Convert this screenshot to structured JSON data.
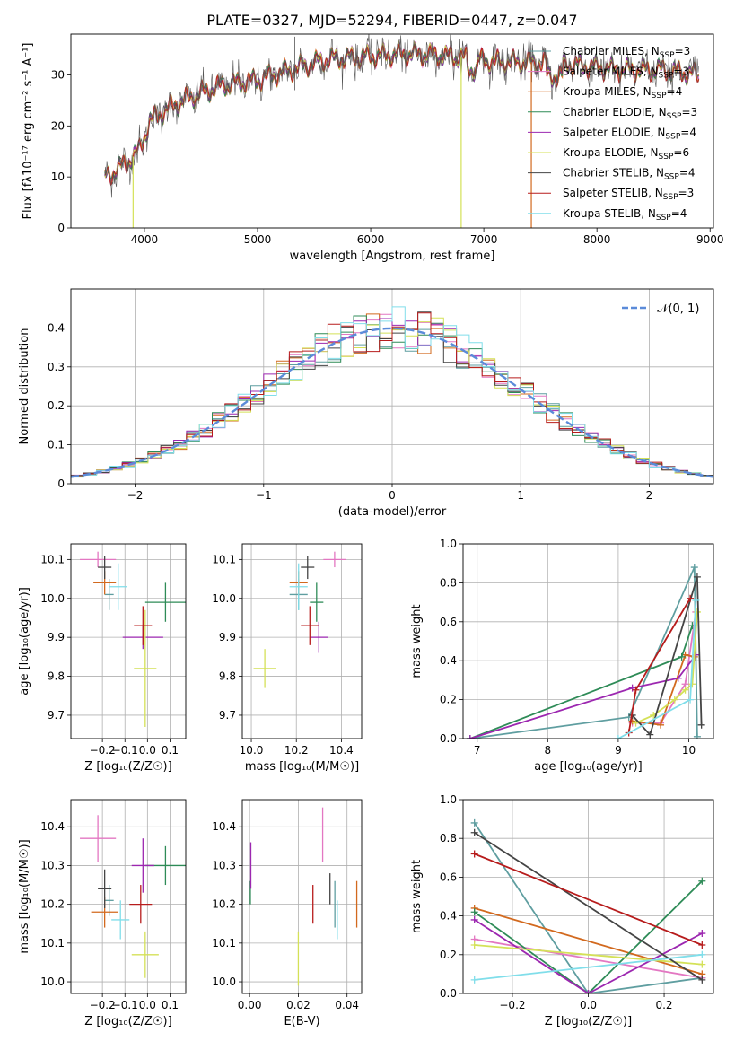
{
  "figure_title": "PLATE=0327, MJD=52294, FIBERID=0447, z=0.047",
  "models": [
    {
      "name": "Chabrier MILES",
      "nssp": "3",
      "color": "#5f9ea0"
    },
    {
      "name": "Salpeter MILES",
      "nssp": "3",
      "color": "#e377c2"
    },
    {
      "name": "Kroupa MILES",
      "nssp": "4",
      "color": "#d2691e"
    },
    {
      "name": "Chabrier ELODIE",
      "nssp": "3",
      "color": "#2e8b57"
    },
    {
      "name": "Salpeter ELODIE",
      "nssp": "4",
      "color": "#9c27b0"
    },
    {
      "name": "Kroupa ELODIE",
      "nssp": "6",
      "color": "#d4e157"
    },
    {
      "name": "Chabrier STELIB",
      "nssp": "4",
      "color": "#444444"
    },
    {
      "name": "Salpeter STELIB",
      "nssp": "3",
      "color": "#b71c1c"
    },
    {
      "name": "Kroupa STELIB",
      "nssp": "4",
      "color": "#80deea"
    }
  ],
  "chart_data": [
    {
      "id": "spectrum",
      "type": "line",
      "xlabel": "wavelength [Angstrom, rest frame]",
      "ylabel": "Flux [fλ10⁻¹⁷ erg cm⁻² s⁻¹ A⁻¹]",
      "xlim": [
        3350,
        9030
      ],
      "ylim": [
        0,
        38
      ],
      "xticks": [
        4000,
        5000,
        6000,
        7000,
        8000,
        9000
      ],
      "yticks": [
        0,
        10,
        20,
        30
      ],
      "continuum": [
        [
          3650,
          10
        ],
        [
          3800,
          12
        ],
        [
          3950,
          15
        ],
        [
          4050,
          21
        ],
        [
          4250,
          24
        ],
        [
          4450,
          26
        ],
        [
          4700,
          28
        ],
        [
          5000,
          29
        ],
        [
          5300,
          31
        ],
        [
          5600,
          33
        ],
        [
          5900,
          33.5
        ],
        [
          6200,
          34
        ],
        [
          6500,
          34
        ],
        [
          6800,
          33.5
        ],
        [
          7100,
          32.5
        ],
        [
          7500,
          32.5
        ],
        [
          7800,
          32
        ],
        [
          8200,
          31
        ],
        [
          8600,
          31
        ],
        [
          8900,
          30
        ]
      ],
      "dropouts": [
        {
          "model": "Kroupa ELODIE",
          "x": 3900
        },
        {
          "model": "Kroupa ELODIE",
          "x": 6800
        },
        {
          "model": "Kroupa MILES",
          "x": 7420
        }
      ],
      "grid": false,
      "legend": "top-right"
    },
    {
      "id": "residual-histogram",
      "type": "line",
      "xlabel": "(data-model)/error",
      "ylabel": "Normed distribution",
      "xlim": [
        -2.5,
        2.5
      ],
      "ylim": [
        0,
        0.5
      ],
      "xticks": [
        -2,
        -1,
        0,
        1,
        2
      ],
      "yticks": [
        0.0,
        0.1,
        0.2,
        0.3,
        0.4
      ],
      "reference_curve": {
        "label": "𝒩(0, 1)",
        "mean": 0,
        "sigma": 1,
        "color": "#5b8bd9"
      },
      "bin_width": 0.1,
      "grid": true,
      "legend": "top-right"
    },
    {
      "id": "age-vs-Z",
      "type": "scatter",
      "xlabel": "Z [log₁₀(Z/Z☉)]",
      "ylabel": "age  [log₁₀(age/yr)]",
      "xlim": [
        -0.34,
        0.17
      ],
      "ylim": [
        9.64,
        10.14
      ],
      "xticks": [
        -0.2,
        -0.1,
        0.0,
        0.1
      ],
      "xticklabels": [
        "−0.2",
        "−0.1",
        "0.0",
        "0.1"
      ],
      "yticks": [
        9.7,
        9.8,
        9.9,
        10.0,
        10.1
      ],
      "yticklabels": [
        "9.7",
        "9.8",
        "9.9",
        "10.0",
        "10.1"
      ],
      "points": [
        {
          "model": "Chabrier MILES",
          "x": -0.17,
          "xerr": 0.02,
          "y": 10.01,
          "yerr": 0.04
        },
        {
          "model": "Salpeter MILES",
          "x": -0.22,
          "xerr": 0.08,
          "y": 10.1,
          "yerr": 0.02
        },
        {
          "model": "Kroupa MILES",
          "x": -0.19,
          "xerr": 0.05,
          "y": 10.04,
          "yerr": 0.03
        },
        {
          "model": "Chabrier ELODIE",
          "x": 0.08,
          "xerr": 0.09,
          "y": 9.99,
          "yerr": 0.05
        },
        {
          "model": "Salpeter ELODIE",
          "x": -0.02,
          "xerr": 0.09,
          "y": 9.9,
          "yerr": 0.03
        },
        {
          "model": "Kroupa ELODIE",
          "x": -0.01,
          "xerr": 0.05,
          "y": 9.82,
          "yerr": 0.15
        },
        {
          "model": "Chabrier STELIB",
          "x": -0.19,
          "xerr": 0.03,
          "y": 10.08,
          "yerr": 0.03
        },
        {
          "model": "Salpeter STELIB",
          "x": -0.02,
          "xerr": 0.04,
          "y": 9.93,
          "yerr": 0.05
        },
        {
          "model": "Kroupa STELIB",
          "x": -0.13,
          "xerr": 0.04,
          "y": 10.03,
          "yerr": 0.06
        }
      ],
      "grid": true
    },
    {
      "id": "age-vs-mass",
      "type": "scatter",
      "xlabel": "mass [log₁₀(M/M☉)]",
      "ylabel": "",
      "xlim": [
        9.96,
        10.49
      ],
      "ylim": [
        9.64,
        10.14
      ],
      "xticks": [
        10.0,
        10.2,
        10.4
      ],
      "xticklabels": [
        "10.0",
        "10.2",
        "10.4"
      ],
      "yticks": [
        9.7,
        9.8,
        9.9,
        10.0,
        10.1
      ],
      "yticklabels": [
        "9.7",
        "9.8",
        "9.9",
        "10.0",
        "10.1"
      ],
      "points": [
        {
          "model": "Chabrier MILES",
          "x": 10.21,
          "xerr": 0.04,
          "y": 10.01,
          "yerr": 0.04
        },
        {
          "model": "Salpeter MILES",
          "x": 10.37,
          "xerr": 0.05,
          "y": 10.1,
          "yerr": 0.02
        },
        {
          "model": "Kroupa MILES",
          "x": 10.21,
          "xerr": 0.04,
          "y": 10.04,
          "yerr": 0.03
        },
        {
          "model": "Chabrier ELODIE",
          "x": 10.29,
          "xerr": 0.03,
          "y": 9.99,
          "yerr": 0.05
        },
        {
          "model": "Salpeter ELODIE",
          "x": 10.3,
          "xerr": 0.04,
          "y": 9.9,
          "yerr": 0.04
        },
        {
          "model": "Kroupa ELODIE",
          "x": 10.06,
          "xerr": 0.05,
          "y": 9.82,
          "yerr": 0.05
        },
        {
          "model": "Chabrier STELIB",
          "x": 10.25,
          "xerr": 0.03,
          "y": 10.08,
          "yerr": 0.03
        },
        {
          "model": "Salpeter STELIB",
          "x": 10.26,
          "xerr": 0.04,
          "y": 9.93,
          "yerr": 0.05
        },
        {
          "model": "Kroupa STELIB",
          "x": 10.21,
          "xerr": 0.04,
          "y": 10.03,
          "yerr": 0.06
        }
      ],
      "grid": true
    },
    {
      "id": "weight-vs-age",
      "type": "line",
      "xlabel": "age  [log₁₀(age/yr)]",
      "ylabel": "mass weight",
      "xlim": [
        6.8,
        10.35
      ],
      "ylim": [
        0,
        1.0
      ],
      "xticks": [
        7,
        8,
        9,
        10
      ],
      "xticklabels": [
        "7",
        "8",
        "9",
        "10"
      ],
      "yticks": [
        0.0,
        0.2,
        0.4,
        0.6,
        0.8,
        1.0
      ],
      "yticklabels": [
        "0.0",
        "0.2",
        "0.4",
        "0.6",
        "0.8",
        "1.0"
      ],
      "series": [
        {
          "model": "Chabrier MILES",
          "x": [
            6.9,
            9.15,
            10.08,
            10.12
          ],
          "y": [
            0.0,
            0.11,
            0.88,
            0.01
          ]
        },
        {
          "model": "Salpeter MILES",
          "x": [
            9.2,
            9.6,
            9.95,
            10.1
          ],
          "y": [
            0.08,
            0.08,
            0.28,
            0.65
          ]
        },
        {
          "model": "Kroupa MILES",
          "x": [
            9.2,
            9.6,
            9.95,
            10.08
          ],
          "y": [
            0.09,
            0.07,
            0.43,
            0.42
          ]
        },
        {
          "model": "Chabrier ELODIE",
          "x": [
            6.9,
            9.9,
            10.05
          ],
          "y": [
            0.0,
            0.42,
            0.58
          ]
        },
        {
          "model": "Salpeter ELODIE",
          "x": [
            6.9,
            9.2,
            9.85,
            10.1
          ],
          "y": [
            0.0,
            0.26,
            0.31,
            0.43
          ]
        },
        {
          "model": "Kroupa ELODIE",
          "x": [
            9.25,
            9.5,
            9.8,
            9.95,
            10.05,
            10.12
          ],
          "y": [
            0.08,
            0.12,
            0.2,
            0.25,
            0.28,
            0.65
          ]
        },
        {
          "model": "Chabrier STELIB",
          "x": [
            9.2,
            9.45,
            10.12,
            10.18
          ],
          "y": [
            0.12,
            0.02,
            0.83,
            0.07
          ]
        },
        {
          "model": "Salpeter STELIB",
          "x": [
            9.15,
            9.25,
            10.02
          ],
          "y": [
            0.03,
            0.25,
            0.72
          ]
        },
        {
          "model": "Kroupa STELIB",
          "x": [
            9.0,
            10.02,
            10.1
          ],
          "y": [
            0.0,
            0.2,
            0.71
          ]
        }
      ],
      "grid": true
    },
    {
      "id": "mass-vs-Z",
      "type": "scatter",
      "xlabel": "Z [log₁₀(Z/Z☉)]",
      "ylabel": "mass [log₁₀(M/M☉)]",
      "xlim": [
        -0.34,
        0.17
      ],
      "ylim": [
        9.97,
        10.47
      ],
      "xticks": [
        -0.2,
        -0.1,
        0.0,
        0.1
      ],
      "xticklabels": [
        "−0.2",
        "−0.1",
        "0.0",
        "0.1"
      ],
      "yticks": [
        10.0,
        10.1,
        10.2,
        10.3,
        10.4
      ],
      "yticklabels": [
        "10.0",
        "10.1",
        "10.2",
        "10.3",
        "10.4"
      ],
      "points": [
        {
          "model": "Chabrier MILES",
          "x": -0.17,
          "xerr": 0.02,
          "y": 10.21,
          "yerr": 0.04
        },
        {
          "model": "Salpeter MILES",
          "x": -0.22,
          "xerr": 0.08,
          "y": 10.37,
          "yerr": 0.06
        },
        {
          "model": "Kroupa MILES",
          "x": -0.19,
          "xerr": 0.06,
          "y": 10.18,
          "yerr": 0.04
        },
        {
          "model": "Chabrier ELODIE",
          "x": 0.08,
          "xerr": 0.09,
          "y": 10.3,
          "yerr": 0.05
        },
        {
          "model": "Salpeter ELODIE",
          "x": -0.02,
          "xerr": 0.05,
          "y": 10.3,
          "yerr": 0.07
        },
        {
          "model": "Kroupa ELODIE",
          "x": -0.01,
          "xerr": 0.06,
          "y": 10.07,
          "yerr": 0.06
        },
        {
          "model": "Chabrier STELIB",
          "x": -0.19,
          "xerr": 0.03,
          "y": 10.24,
          "yerr": 0.05
        },
        {
          "model": "Salpeter STELIB",
          "x": -0.03,
          "xerr": 0.05,
          "y": 10.2,
          "yerr": 0.05
        },
        {
          "model": "Kroupa STELIB",
          "x": -0.12,
          "xerr": 0.04,
          "y": 10.16,
          "yerr": 0.05
        }
      ],
      "grid": true
    },
    {
      "id": "mass-vs-EBV",
      "type": "scatter",
      "xlabel": "E(B-V)",
      "ylabel": "",
      "xlim": [
        -0.003,
        0.046
      ],
      "ylim": [
        9.97,
        10.47
      ],
      "xticks": [
        0.0,
        0.02,
        0.04
      ],
      "xticklabels": [
        "0.00",
        "0.02",
        "0.04"
      ],
      "yticks": [
        10.0,
        10.1,
        10.2,
        10.3,
        10.4
      ],
      "yticklabels": [
        "10.0",
        "10.1",
        "10.2",
        "10.3",
        "10.4"
      ],
      "points": [
        {
          "model": "Chabrier MILES",
          "x": 0.035,
          "y": 10.2,
          "yerr": 0.06
        },
        {
          "model": "Salpeter MILES",
          "x": 0.03,
          "y": 10.38,
          "yerr": 0.07
        },
        {
          "model": "Kroupa MILES",
          "x": 0.044,
          "y": 10.2,
          "yerr": 0.06
        },
        {
          "model": "Chabrier ELODIE",
          "x": 0.0003,
          "y": 10.23,
          "yerr": 0.03
        },
        {
          "model": "Salpeter ELODIE",
          "x": 0.0005,
          "y": 10.3,
          "yerr": 0.06
        },
        {
          "model": "Kroupa ELODIE",
          "x": 0.02,
          "y": 10.06,
          "yerr": 0.07
        },
        {
          "model": "Chabrier STELIB",
          "x": 0.033,
          "y": 10.24,
          "yerr": 0.04
        },
        {
          "model": "Salpeter STELIB",
          "x": 0.026,
          "y": 10.2,
          "yerr": 0.05
        },
        {
          "model": "Kroupa STELIB",
          "x": 0.036,
          "y": 10.16,
          "yerr": 0.05
        }
      ],
      "grid": true
    },
    {
      "id": "weight-vs-Z",
      "type": "line",
      "xlabel": "Z [log₁₀(Z/Z☉)]",
      "ylabel": "mass weight",
      "xlim": [
        -0.33,
        0.33
      ],
      "ylim": [
        0,
        1.0
      ],
      "xticks": [
        -0.2,
        0.0,
        0.2
      ],
      "xticklabels": [
        "−0.2",
        "0.0",
        "0.2"
      ],
      "yticks": [
        0.0,
        0.2,
        0.4,
        0.6,
        0.8,
        1.0
      ],
      "yticklabels": [
        "0.0",
        "0.2",
        "0.4",
        "0.6",
        "0.8",
        "1.0"
      ],
      "series": [
        {
          "model": "Chabrier MILES",
          "x": [
            -0.3,
            0.0,
            0.3
          ],
          "y": [
            0.88,
            0.0,
            0.08
          ]
        },
        {
          "model": "Salpeter MILES",
          "x": [
            -0.3,
            0.3
          ],
          "y": [
            0.28,
            0.08
          ]
        },
        {
          "model": "Kroupa MILES",
          "x": [
            -0.3,
            0.3
          ],
          "y": [
            0.44,
            0.1
          ]
        },
        {
          "model": "Chabrier ELODIE",
          "x": [
            -0.3,
            0.0,
            0.3
          ],
          "y": [
            0.42,
            0.0,
            0.58
          ]
        },
        {
          "model": "Salpeter ELODIE",
          "x": [
            -0.3,
            0.0,
            0.3
          ],
          "y": [
            0.38,
            0.0,
            0.31
          ]
        },
        {
          "model": "Kroupa ELODIE",
          "x": [
            -0.3,
            0.3
          ],
          "y": [
            0.25,
            0.15
          ]
        },
        {
          "model": "Chabrier STELIB",
          "x": [
            -0.3,
            0.3
          ],
          "y": [
            0.83,
            0.07
          ]
        },
        {
          "model": "Salpeter STELIB",
          "x": [
            -0.3,
            0.3
          ],
          "y": [
            0.72,
            0.25
          ]
        },
        {
          "model": "Kroupa STELIB",
          "x": [
            -0.3,
            0.3
          ],
          "y": [
            0.07,
            0.2
          ]
        }
      ],
      "stacked_markers_x": -0.3,
      "grid": true
    }
  ]
}
